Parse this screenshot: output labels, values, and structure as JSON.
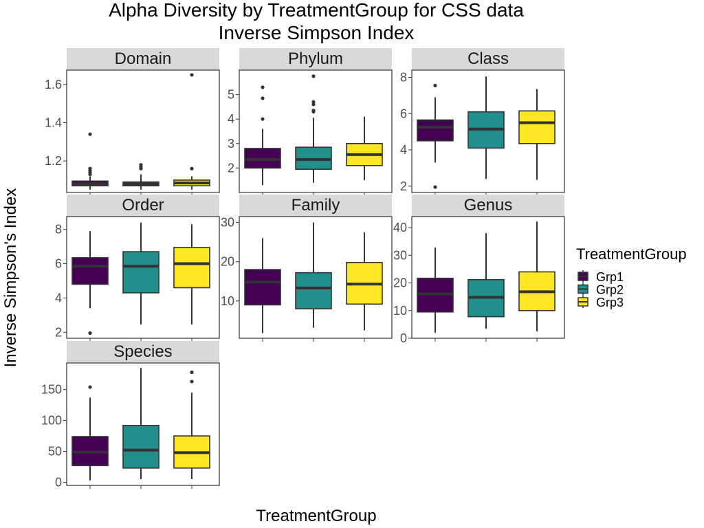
{
  "chart_data": {
    "type": "box",
    "title": "Alpha Diversity by TreatmentGroup for CSS data",
    "subtitle": "Inverse Simpson Index",
    "xlabel": "TreatmentGroup",
    "ylabel": "Inverse Simpson's Index",
    "legend": {
      "title": "TreatmentGroup",
      "position": "right",
      "items": [
        {
          "name": "Grp1",
          "color": "#440154"
        },
        {
          "name": "Grp2",
          "color": "#21908C"
        },
        {
          "name": "Grp3",
          "color": "#FDE725"
        }
      ]
    },
    "groups": [
      "Grp1",
      "Grp2",
      "Grp3"
    ],
    "facets": [
      {
        "name": "Domain",
        "ylim": [
          1.035,
          1.675
        ],
        "yticks": [
          1.2,
          1.4,
          1.6
        ],
        "ytick_labels": [
          "1.2",
          "1.4",
          "1.6"
        ],
        "boxes": [
          {
            "q1": 1.07,
            "median": 1.08,
            "q3": 1.095,
            "low": 1.05,
            "high": 1.12,
            "outliers": [
              1.13,
              1.14,
              1.15,
              1.16,
              1.34
            ]
          },
          {
            "q1": 1.07,
            "median": 1.08,
            "q3": 1.09,
            "low": 1.05,
            "high": 1.13,
            "outliers": [
              1.16,
              1.17,
              1.18
            ]
          },
          {
            "q1": 1.07,
            "median": 1.085,
            "q3": 1.1,
            "low": 1.05,
            "high": 1.12,
            "outliers": [
              1.16,
              1.65
            ]
          }
        ]
      },
      {
        "name": "Phylum",
        "ylim": [
          1.0,
          6.0
        ],
        "yticks": [
          2,
          3,
          4,
          5
        ],
        "ytick_labels": [
          "2",
          "3",
          "4",
          "5"
        ],
        "boxes": [
          {
            "q1": 2.0,
            "median": 2.35,
            "q3": 2.8,
            "low": 1.3,
            "high": 3.6,
            "outliers": [
              4.0,
              4.85,
              5.3
            ]
          },
          {
            "q1": 1.95,
            "median": 2.35,
            "q3": 2.85,
            "low": 1.4,
            "high": 4.05,
            "outliers": [
              4.3,
              4.35,
              4.6,
              4.7,
              5.75
            ]
          },
          {
            "q1": 2.1,
            "median": 2.55,
            "q3": 3.0,
            "low": 1.5,
            "high": 4.1,
            "outliers": []
          }
        ]
      },
      {
        "name": "Class",
        "ylim": [
          1.65,
          8.4
        ],
        "yticks": [
          2,
          4,
          6,
          8
        ],
        "ytick_labels": [
          "2",
          "4",
          "6",
          "8"
        ],
        "boxes": [
          {
            "q1": 4.5,
            "median": 5.25,
            "q3": 5.65,
            "low": 3.3,
            "high": 6.9,
            "outliers": [
              1.95,
              7.55
            ]
          },
          {
            "q1": 4.1,
            "median": 5.15,
            "q3": 6.1,
            "low": 2.4,
            "high": 8.05,
            "outliers": []
          },
          {
            "q1": 4.35,
            "median": 5.5,
            "q3": 6.15,
            "low": 2.35,
            "high": 7.35,
            "outliers": []
          }
        ]
      },
      {
        "name": "Order",
        "ylim": [
          1.65,
          8.75
        ],
        "yticks": [
          2,
          4,
          6,
          8
        ],
        "ytick_labels": [
          "2",
          "4",
          "6",
          "8"
        ],
        "boxes": [
          {
            "q1": 4.8,
            "median": 5.85,
            "q3": 6.35,
            "low": 3.4,
            "high": 7.9,
            "outliers": [
              1.95
            ]
          },
          {
            "q1": 4.3,
            "median": 5.85,
            "q3": 6.7,
            "low": 2.45,
            "high": 8.4,
            "outliers": []
          },
          {
            "q1": 4.6,
            "median": 6.0,
            "q3": 6.95,
            "low": 2.45,
            "high": 8.3,
            "outliers": []
          }
        ]
      },
      {
        "name": "Family",
        "ylim": [
          0.5,
          31.5
        ],
        "yticks": [
          10,
          20,
          30
        ],
        "ytick_labels": [
          "10",
          "20",
          "30"
        ],
        "boxes": [
          {
            "q1": 9.0,
            "median": 14.8,
            "q3": 18.0,
            "low": 1.8,
            "high": 26.0,
            "outliers": []
          },
          {
            "q1": 8.0,
            "median": 13.3,
            "q3": 17.2,
            "low": 3.2,
            "high": 30.0,
            "outliers": []
          },
          {
            "q1": 9.2,
            "median": 14.3,
            "q3": 19.8,
            "low": 2.5,
            "high": 27.5,
            "outliers": []
          }
        ]
      },
      {
        "name": "Genus",
        "ylim": [
          0,
          44
        ],
        "yticks": [
          0,
          10,
          20,
          30,
          40
        ],
        "ytick_labels": [
          "0",
          "10",
          "20",
          "30",
          "40"
        ],
        "boxes": [
          {
            "q1": 9.5,
            "median": 16.0,
            "q3": 21.7,
            "low": 2.0,
            "high": 32.8,
            "outliers": []
          },
          {
            "q1": 7.8,
            "median": 14.8,
            "q3": 21.2,
            "low": 3.5,
            "high": 38.0,
            "outliers": []
          },
          {
            "q1": 10.0,
            "median": 16.8,
            "q3": 24.0,
            "low": 2.5,
            "high": 42.2,
            "outliers": []
          }
        ]
      },
      {
        "name": "Species",
        "ylim": [
          -5,
          193
        ],
        "yticks": [
          0,
          50,
          100,
          150
        ],
        "ytick_labels": [
          "0",
          "50",
          "100",
          "150"
        ],
        "boxes": [
          {
            "q1": 27.0,
            "median": 49.0,
            "q3": 74.0,
            "low": 3.0,
            "high": 137.0,
            "outliers": [
              154.0
            ]
          },
          {
            "q1": 23.0,
            "median": 52.0,
            "q3": 92.0,
            "low": 5.0,
            "high": 185.0,
            "outliers": []
          },
          {
            "q1": 23.0,
            "median": 48.0,
            "q3": 75.0,
            "low": 5.0,
            "high": 145.0,
            "outliers": [
              163.0,
              178.0
            ]
          }
        ]
      }
    ]
  }
}
